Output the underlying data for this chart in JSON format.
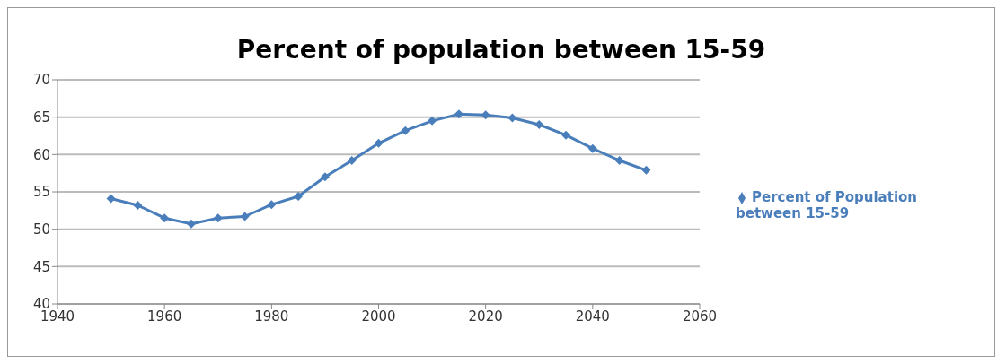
{
  "chart_data": {
    "type": "line",
    "title": "Percent of population between 15-59",
    "x": [
      1950,
      1955,
      1960,
      1965,
      1970,
      1975,
      1980,
      1985,
      1990,
      1995,
      2000,
      2005,
      2010,
      2015,
      2020,
      2025,
      2030,
      2035,
      2040,
      2045,
      2050
    ],
    "series": [
      {
        "name": "Percent of Population between 15-59",
        "color": "#4a7ebb",
        "values": [
          54.1,
          53.2,
          51.5,
          50.7,
          51.5,
          51.7,
          53.3,
          54.4,
          57.0,
          59.2,
          61.5,
          63.2,
          64.5,
          65.4,
          65.3,
          64.9,
          64.0,
          62.6,
          60.8,
          59.2,
          57.9
        ]
      }
    ],
    "xlim": [
      1940,
      2060
    ],
    "xticks": [
      1940,
      1960,
      1980,
      2000,
      2020,
      2040,
      2060
    ],
    "ylim": [
      40,
      70
    ],
    "yticks": [
      40,
      45,
      50,
      55,
      60,
      65,
      70
    ],
    "grid": "y",
    "legend": "right",
    "marker": "diamond",
    "line_style": "solid"
  }
}
